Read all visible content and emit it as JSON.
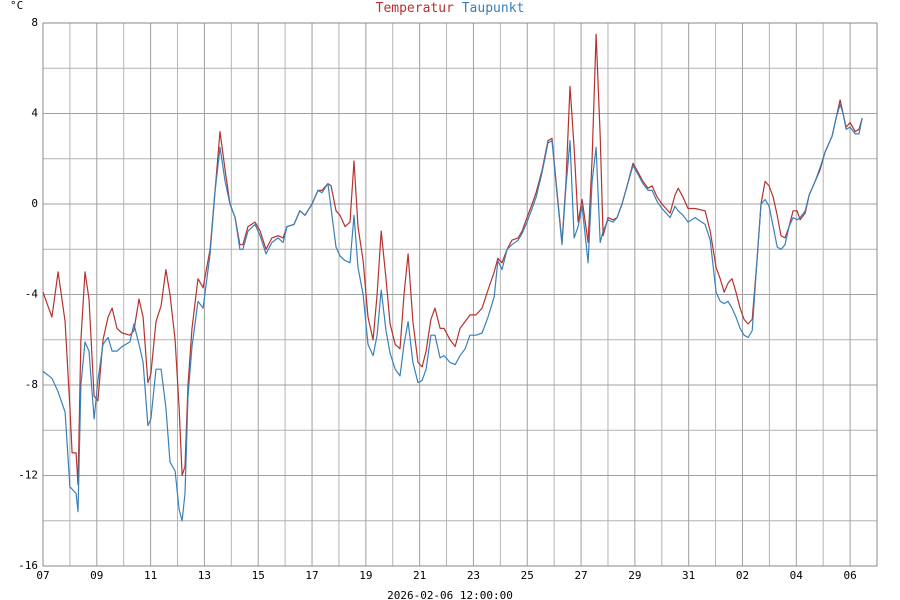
{
  "chart_data": {
    "type": "line",
    "ylabel": "°C",
    "timestamp": "2026-02-06 12:00:00",
    "x": [
      0,
      0.33,
      0.56,
      0.82,
      1.0,
      1.08,
      1.23,
      1.3,
      1.41,
      1.56,
      1.71,
      1.9,
      2.04,
      2.23,
      2.42,
      2.57,
      2.75,
      2.94,
      3.23,
      3.38,
      3.57,
      3.72,
      3.9,
      4.01,
      4.2,
      4.39,
      4.57,
      4.72,
      4.91,
      5.06,
      5.17,
      5.28,
      5.39,
      5.54,
      5.76,
      5.95,
      6.21,
      6.39,
      6.58,
      6.77,
      6.95,
      7.14,
      7.32,
      7.43,
      7.62,
      7.88,
      8.07,
      8.29,
      8.51,
      8.74,
      8.92,
      9.07,
      9.33,
      9.55,
      9.74,
      10.0,
      10.22,
      10.37,
      10.59,
      10.71,
      10.89,
      11.04,
      11.23,
      11.41,
      11.56,
      11.71,
      11.9,
      12.08,
      12.27,
      12.42,
      12.57,
      12.75,
      12.9,
      13.09,
      13.27,
      13.42,
      13.57,
      13.75,
      13.94,
      14.09,
      14.24,
      14.42,
      14.57,
      14.76,
      14.91,
      15.13,
      15.32,
      15.5,
      15.69,
      15.87,
      16.1,
      16.32,
      16.54,
      16.77,
      16.91,
      17.06,
      17.25,
      17.43,
      17.66,
      17.81,
      17.99,
      18.18,
      18.33,
      18.55,
      18.77,
      18.92,
      19.11,
      19.29,
      19.44,
      19.59,
      19.74,
      19.89,
      20.04,
      20.26,
      20.41,
      20.56,
      20.71,
      20.82,
      21.0,
      21.19,
      21.34,
      21.52,
      21.71,
      21.93,
      22.12,
      22.3,
      22.49,
      22.64,
      22.83,
      23.01,
      23.31,
      23.49,
      23.61,
      23.79,
      23.98,
      24.24,
      24.61,
      24.8,
      25.02,
      25.17,
      25.32,
      25.46,
      25.61,
      25.76,
      25.91,
      26.06,
      26.21,
      26.36,
      26.54,
      26.69,
      26.84,
      26.99,
      27.14,
      27.29,
      27.43,
      27.58,
      27.73,
      27.88,
      28.03,
      28.14,
      28.33,
      28.48,
      28.7,
      28.88,
      29.07,
      29.33,
      29.48,
      29.63,
      29.74,
      29.85,
      30.0,
      30.19,
      30.33,
      30.45
    ],
    "series": [
      {
        "name": "Temperatur",
        "color": "#b5322f",
        "values": [
          -3.9,
          -5.0,
          -3.0,
          -5.2,
          -9,
          -11,
          -11,
          -12.4,
          -6,
          -3.0,
          -4.2,
          -8.5,
          -8.7,
          -6,
          -5.0,
          -4.6,
          -5.5,
          -5.7,
          -5.8,
          -5.6,
          -4.2,
          -5.0,
          -7.9,
          -7.5,
          -5.2,
          -4.5,
          -2.9,
          -4.0,
          -6.0,
          -9,
          -12,
          -11.6,
          -8,
          -5.5,
          -3.3,
          -3.7,
          -2.0,
          0.5,
          3.2,
          1.5,
          0.0,
          -0.6,
          -1.8,
          -1.8,
          -1.0,
          -0.8,
          -1.2,
          -2.0,
          -1.5,
          -1.4,
          -1.5,
          -1.0,
          -0.9,
          -0.3,
          -0.5,
          0.0,
          0.6,
          0.6,
          0.9,
          0.8,
          -0.3,
          -0.5,
          -1.0,
          -0.8,
          1.9,
          -1.0,
          -2.5,
          -5,
          -6,
          -4,
          -1.2,
          -3.3,
          -5.3,
          -6.2,
          -6.4,
          -4.0,
          -2.2,
          -5.2,
          -7,
          -7.2,
          -6.5,
          -5.1,
          -4.6,
          -5.5,
          -5.5,
          -6.0,
          -6.3,
          -5.5,
          -5.2,
          -4.9,
          -4.9,
          -4.6,
          -3.8,
          -3.0,
          -2.4,
          -2.6,
          -2.0,
          -1.6,
          -1.5,
          -1.2,
          -0.6,
          0.0,
          0.5,
          1.5,
          2.8,
          2.9,
          0.5,
          -1.7,
          1.0,
          5.2,
          2.5,
          -0.8,
          0.2,
          -1.7,
          2.0,
          7.5,
          3.0,
          -1.4,
          -0.6,
          -0.7,
          -0.6,
          0.0,
          0.8,
          1.8,
          1.4,
          1.0,
          0.7,
          0.8,
          0.3,
          0.0,
          -0.4,
          0.4,
          0.7,
          0.3,
          -0.2,
          -0.2,
          -0.3,
          -1.2,
          -2.8,
          -3.3,
          -3.9,
          -3.5,
          -3.3,
          -3.9,
          -4.6,
          -5.1,
          -5.3,
          -5.1,
          -2.5,
          0.0,
          1.0,
          0.8,
          0.3,
          -0.5,
          -1.4,
          -1.5,
          -1.0,
          -0.3,
          -0.3,
          -0.7,
          -0.4,
          0.4,
          1.0,
          1.5,
          2.3,
          3.0,
          3.8,
          4.6,
          4.0,
          3.4,
          3.6,
          3.2,
          3.3,
          3.8
        ]
      },
      {
        "name": "Taupunkt",
        "color": "#3a80b8",
        "values": [
          -7.4,
          -7.7,
          -8.3,
          -9.2,
          -12.5,
          -12.6,
          -12.8,
          -13.6,
          -8,
          -6.1,
          -6.5,
          -9.5,
          -7.8,
          -6.2,
          -5.9,
          -6.5,
          -6.5,
          -6.3,
          -6.1,
          -5.3,
          -6.2,
          -7,
          -9.8,
          -9.5,
          -7.3,
          -7.3,
          -9,
          -11.4,
          -11.8,
          -13.5,
          -14.0,
          -12.8,
          -8.5,
          -6.3,
          -4.3,
          -4.6,
          -2.2,
          0.5,
          2.5,
          1.0,
          0.0,
          -0.6,
          -2.0,
          -2.0,
          -1.2,
          -0.9,
          -1.4,
          -2.2,
          -1.7,
          -1.5,
          -1.7,
          -1.0,
          -0.9,
          -0.3,
          -0.5,
          0.0,
          0.6,
          0.5,
          0.9,
          -0.2,
          -1.9,
          -2.3,
          -2.5,
          -2.6,
          -0.5,
          -2.8,
          -4.0,
          -6.2,
          -6.7,
          -5.8,
          -3.8,
          -5.6,
          -6.6,
          -7.3,
          -7.6,
          -6.2,
          -5.2,
          -7.0,
          -7.9,
          -7.8,
          -7.3,
          -5.8,
          -5.8,
          -6.8,
          -6.7,
          -7.0,
          -7.1,
          -6.7,
          -6.4,
          -5.8,
          -5.8,
          -5.7,
          -5.0,
          -4.1,
          -2.5,
          -2.9,
          -2.0,
          -1.8,
          -1.6,
          -1.3,
          -0.8,
          -0.2,
          0.3,
          1.4,
          2.7,
          2.8,
          0.4,
          -1.8,
          0.8,
          2.8,
          -1.5,
          -1.0,
          -0.1,
          -2.6,
          1.0,
          2.5,
          -1.7,
          -1.2,
          -0.7,
          -0.8,
          -0.6,
          0.0,
          0.8,
          1.7,
          1.3,
          0.9,
          0.6,
          0.6,
          0.1,
          -0.2,
          -0.6,
          -0.1,
          -0.3,
          -0.5,
          -0.8,
          -0.6,
          -0.9,
          -1.6,
          -3.9,
          -4.3,
          -4.4,
          -4.3,
          -4.6,
          -5.0,
          -5.5,
          -5.8,
          -5.9,
          -5.6,
          -2.5,
          0.0,
          0.2,
          -0.1,
          -1.0,
          -1.9,
          -2.0,
          -1.8,
          -1.0,
          -0.6,
          -0.7,
          -0.6,
          -0.3,
          0.4,
          1.0,
          1.6,
          2.3,
          3.0,
          3.8,
          4.4,
          4.0,
          3.3,
          3.4,
          3.1,
          3.1,
          3.8
        ]
      }
    ],
    "xlim": [
      0,
      31
    ],
    "xticks": [
      {
        "value": 0,
        "label": "07"
      },
      {
        "value": 2,
        "label": "09"
      },
      {
        "value": 4,
        "label": "11"
      },
      {
        "value": 6,
        "label": "13"
      },
      {
        "value": 8,
        "label": "15"
      },
      {
        "value": 10,
        "label": "17"
      },
      {
        "value": 12,
        "label": "19"
      },
      {
        "value": 14,
        "label": "21"
      },
      {
        "value": 16,
        "label": "23"
      },
      {
        "value": 18,
        "label": "25"
      },
      {
        "value": 20,
        "label": "27"
      },
      {
        "value": 22,
        "label": "29"
      },
      {
        "value": 24,
        "label": "31"
      },
      {
        "value": 26,
        "label": "02"
      },
      {
        "value": 28,
        "label": "04"
      },
      {
        "value": 30,
        "label": "06"
      }
    ],
    "xminorticks": [
      1,
      3,
      5,
      7,
      9,
      11,
      13,
      15,
      17,
      19,
      21,
      23,
      25,
      27,
      29
    ],
    "ylim": [
      -16,
      8
    ],
    "yticks": [
      -16,
      -12,
      -8,
      -4,
      0,
      4,
      8
    ],
    "yminorticks": [
      -14,
      -10,
      -6,
      -2,
      2,
      6
    ],
    "grid": true
  }
}
